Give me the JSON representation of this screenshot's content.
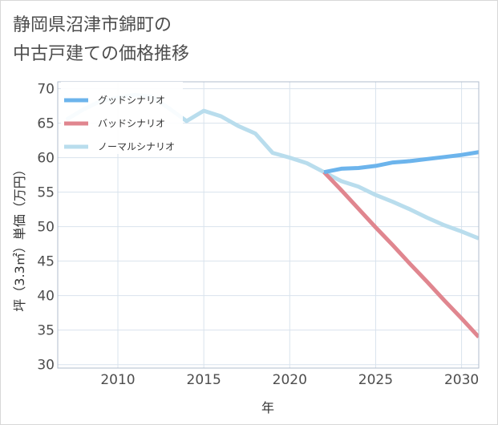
{
  "title_lines": [
    "静岡県沼津市錦町の",
    "中古戸建ての価格推移"
  ],
  "chart_data": {
    "type": "line",
    "title": "静岡県沼津市錦町の中古戸建ての価格推移",
    "xlabel": "年",
    "ylabel": "坪（3.3㎡）単価（万円）",
    "xlim": [
      2006.5,
      2031
    ],
    "ylim": [
      29.5,
      71
    ],
    "x_ticks": [
      2010,
      2015,
      2020,
      2025,
      2030
    ],
    "y_ticks": [
      30,
      35,
      40,
      45,
      50,
      55,
      60,
      65,
      70
    ],
    "grid": true,
    "legend_position": "top-left",
    "series": [
      {
        "name": "グッドシナリオ",
        "color": "#6cb4ec",
        "x": [
          2022,
          2023,
          2024,
          2025,
          2026,
          2027,
          2028,
          2029,
          2030,
          2031
        ],
        "y": [
          57.9,
          58.4,
          58.5,
          58.8,
          59.3,
          59.5,
          59.8,
          60.1,
          60.4,
          60.8
        ]
      },
      {
        "name": "バッドシナリオ",
        "color": "#e0868f",
        "x": [
          2022,
          2023,
          2024,
          2025,
          2026,
          2027,
          2028,
          2029,
          2030,
          2031
        ],
        "y": [
          57.9,
          55.3,
          52.6,
          49.9,
          47.3,
          44.6,
          42.0,
          39.3,
          36.7,
          34.0
        ]
      },
      {
        "name": "ノーマルシナリオ",
        "color": "#b9dded",
        "x": [
          2007,
          2008,
          2009,
          2010,
          2011,
          2012,
          2013,
          2014,
          2015,
          2016,
          2017,
          2018,
          2019,
          2020,
          2021,
          2022,
          2023,
          2024,
          2025,
          2026,
          2027,
          2028,
          2029,
          2030,
          2031
        ],
        "y": [
          65.5,
          67.0,
          68.2,
          68.7,
          69.1,
          68.8,
          67.1,
          65.3,
          66.8,
          66.0,
          64.6,
          63.5,
          60.7,
          60.0,
          59.2,
          57.9,
          56.6,
          55.8,
          54.6,
          53.6,
          52.5,
          51.3,
          50.2,
          49.3,
          48.3
        ]
      }
    ]
  }
}
